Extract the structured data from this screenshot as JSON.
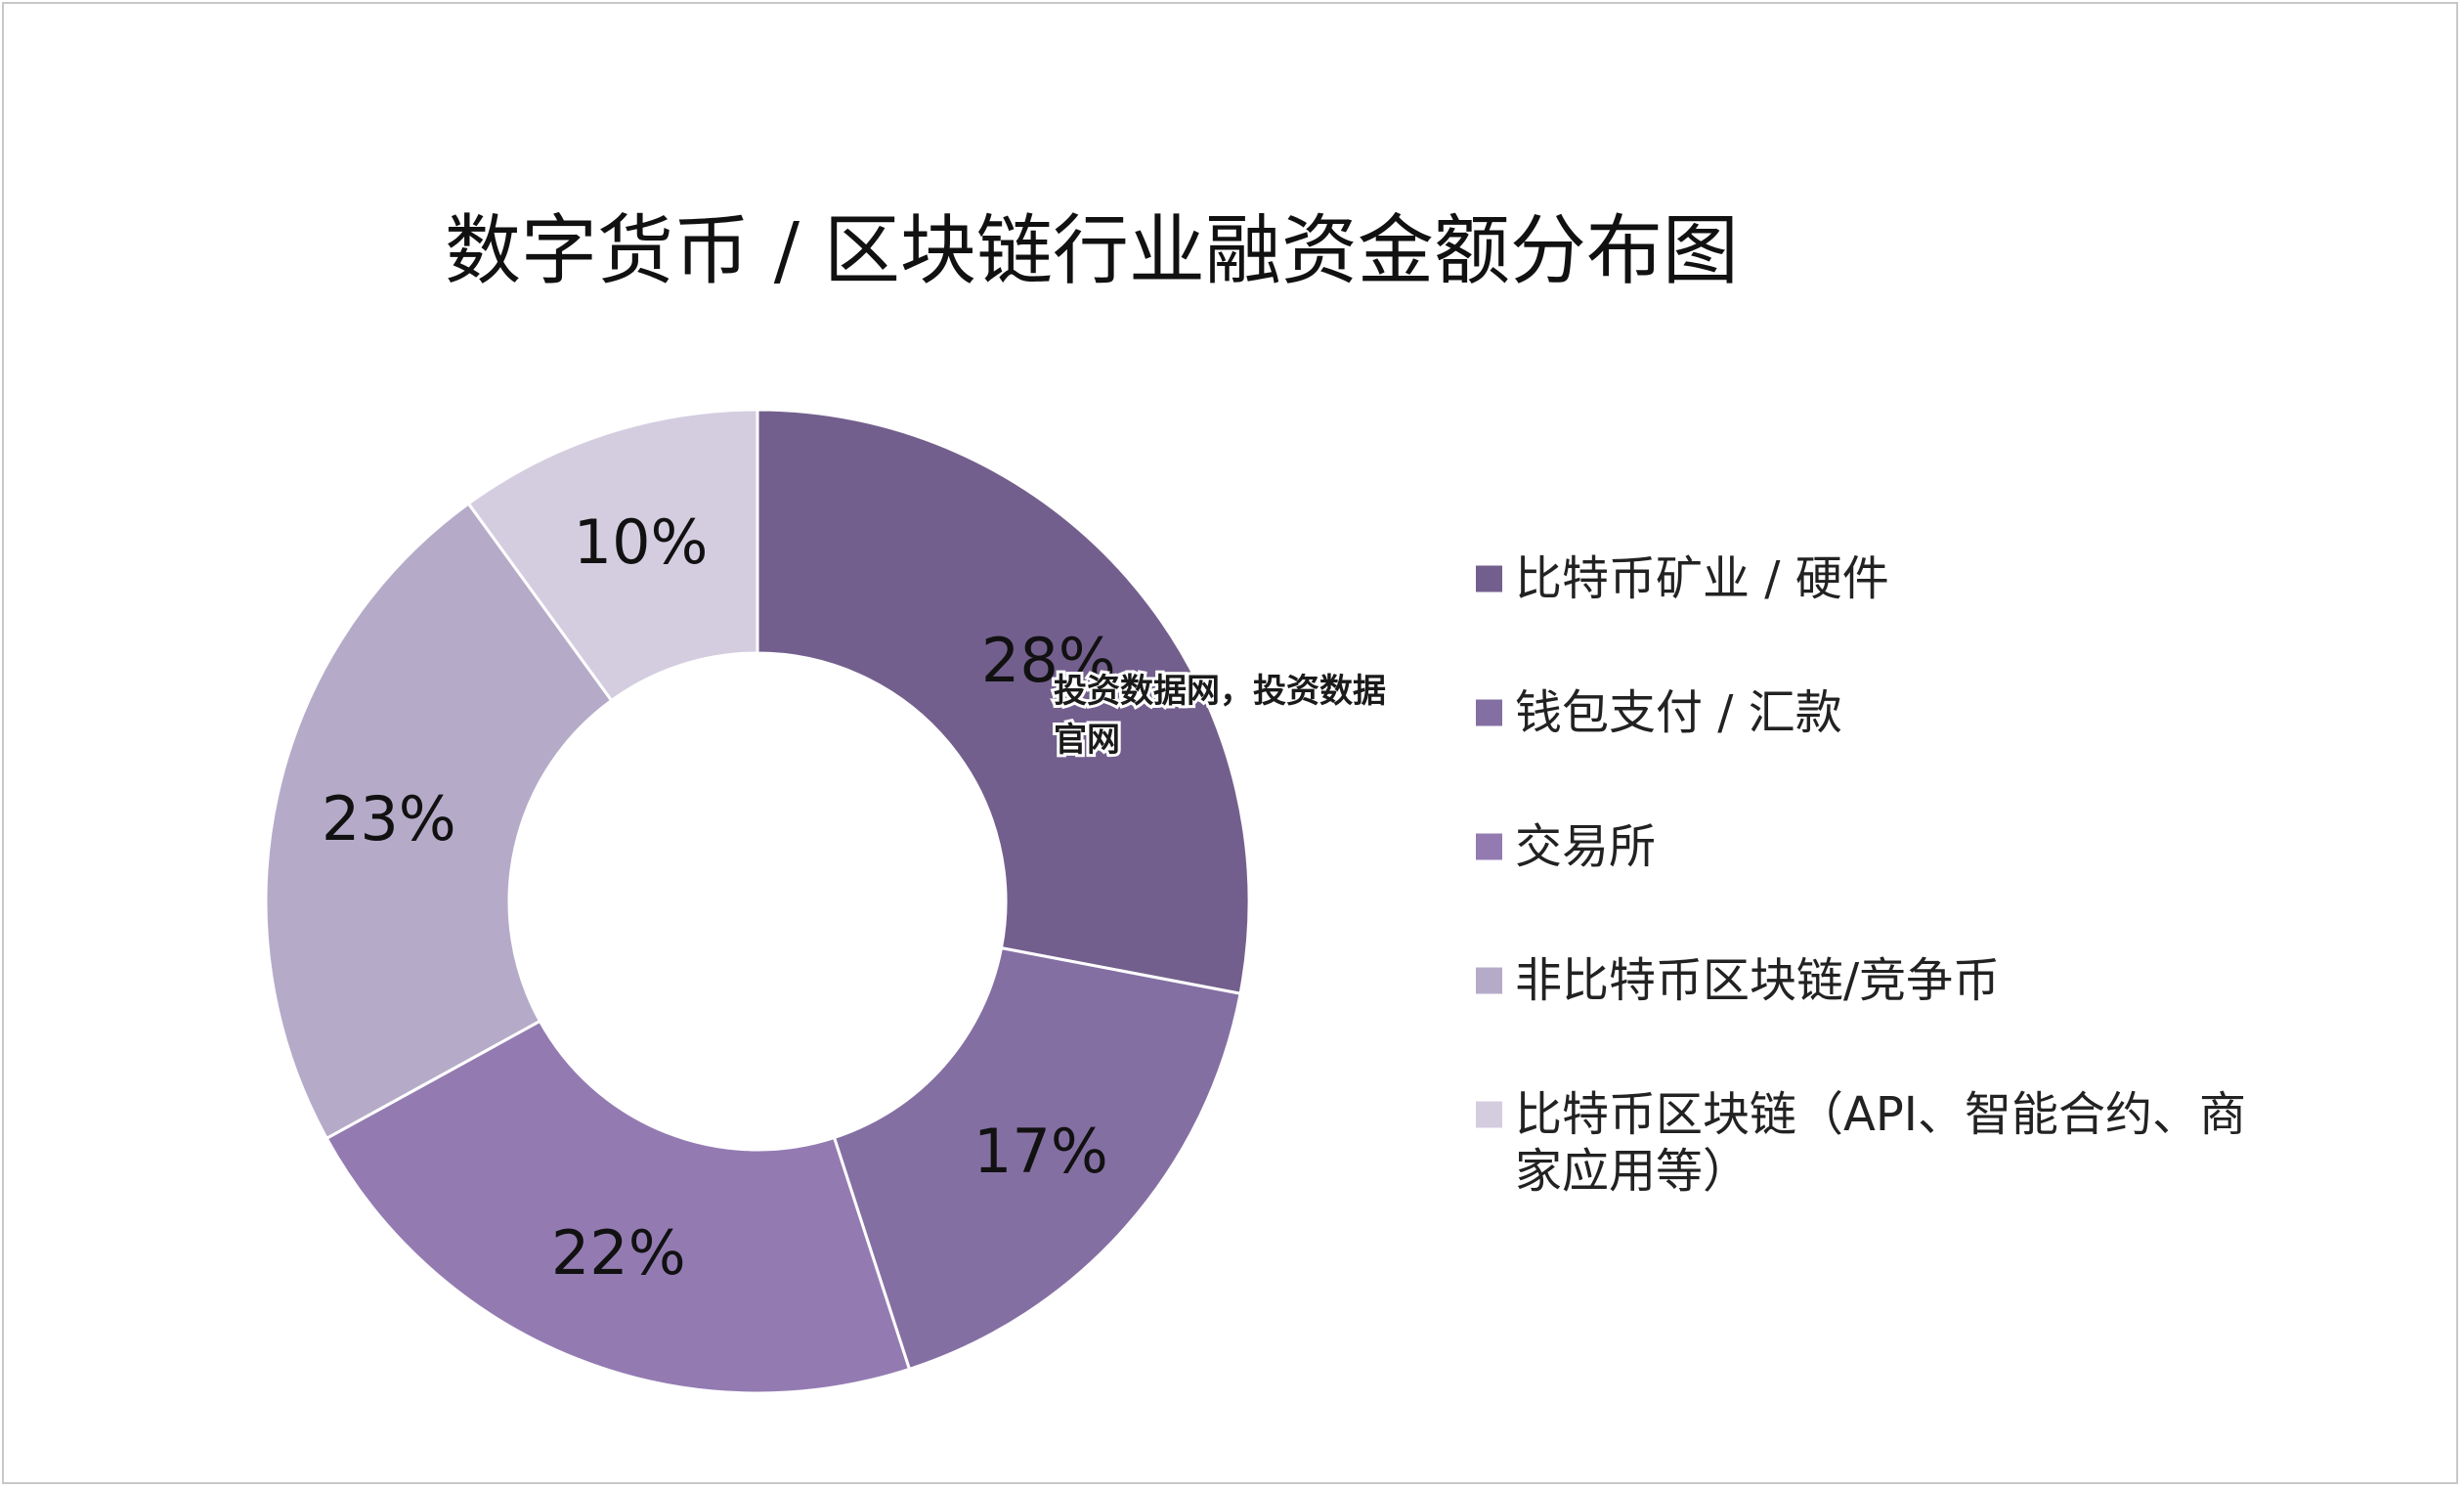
{
  "chart_data": {
    "type": "pie",
    "style": "donut",
    "title": "数字货币 / 区块链行业融资金额分布图",
    "categories": [
      "比特币矿业 / 硬件",
      "钱包支付 / 汇款",
      "交易所",
      "非比特币区块链/竞争币",
      "比特币区块链（API、智能合约、商家应用等）"
    ],
    "values": [
      28,
      17,
      22,
      23,
      10
    ],
    "value_labels": [
      "28%",
      "17%",
      "22%",
      "23%",
      "10%"
    ],
    "colors": [
      "#735f8d",
      "#846fa3",
      "#937bb2",
      "#b5abc9",
      "#d4cde0"
    ],
    "legend_position": "right"
  },
  "legend_lines": [
    [
      "比特币矿业 / 硬件"
    ],
    [
      "钱包支付 / 汇款"
    ],
    [
      "交易所"
    ],
    [
      "非比特币区块链/竞争币"
    ],
    [
      "比特币区块链（API、智能合约、商",
      "家应用等）"
    ]
  ],
  "watermark": {
    "line1": "投资数据网，投资数据",
    "line2": "官网"
  }
}
